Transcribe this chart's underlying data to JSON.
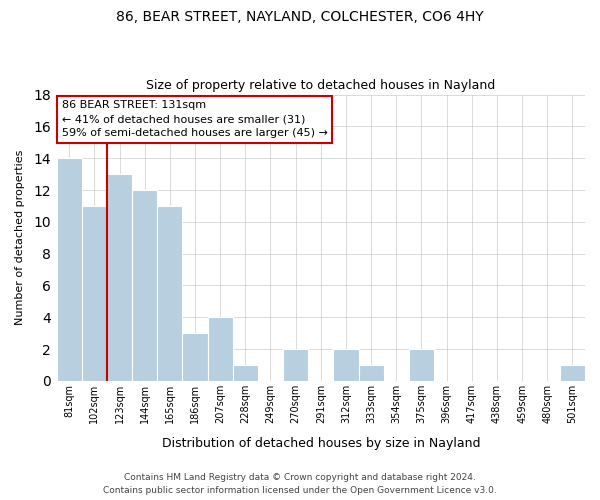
{
  "title": "86, BEAR STREET, NAYLAND, COLCHESTER, CO6 4HY",
  "subtitle": "Size of property relative to detached houses in Nayland",
  "xlabel": "Distribution of detached houses by size in Nayland",
  "ylabel": "Number of detached properties",
  "categories": [
    "81sqm",
    "102sqm",
    "123sqm",
    "144sqm",
    "165sqm",
    "186sqm",
    "207sqm",
    "228sqm",
    "249sqm",
    "270sqm",
    "291sqm",
    "312sqm",
    "333sqm",
    "354sqm",
    "375sqm",
    "396sqm",
    "417sqm",
    "438sqm",
    "459sqm",
    "480sqm",
    "501sqm"
  ],
  "values": [
    14,
    11,
    13,
    12,
    11,
    3,
    4,
    1,
    0,
    2,
    0,
    2,
    1,
    0,
    2,
    0,
    0,
    0,
    0,
    0,
    1
  ],
  "bar_color": "#b8cfe0",
  "bar_edge_color": "#ffffff",
  "subject_line_color": "#cc0000",
  "annotation_text": "86 BEAR STREET: 131sqm\n← 41% of detached houses are smaller (31)\n59% of semi-detached houses are larger (45) →",
  "annotation_box_color": "#ffffff",
  "annotation_box_edge": "#cc0000",
  "ylim": [
    0,
    18
  ],
  "yticks": [
    0,
    2,
    4,
    6,
    8,
    10,
    12,
    14,
    16,
    18
  ],
  "footer": "Contains HM Land Registry data © Crown copyright and database right 2024.\nContains public sector information licensed under the Open Government Licence v3.0.",
  "bg_color": "#ffffff",
  "grid_color": "#cccccc"
}
